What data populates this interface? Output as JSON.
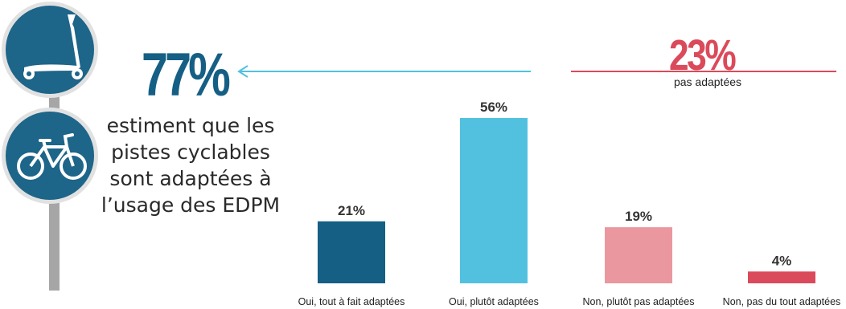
{
  "highlight_left": {
    "percent": "77%",
    "lines": [
      "estiment que les",
      "pistes cyclables",
      "sont adaptées à",
      "l’usage des EDPM"
    ]
  },
  "highlight_right": {
    "percent": "23%",
    "label": "pas adaptées"
  },
  "icons": [
    "kick-scooter-sign-icon",
    "bicycle-sign-icon",
    "left-arrow-icon"
  ],
  "colors": {
    "dark_blue": "#155f85",
    "light_blue": "#52c1df",
    "pink": "#ea979f",
    "red": "#db4a5a",
    "sign_blue": "#1d6589",
    "pole": "#a6a6a6"
  },
  "chart_data": {
    "type": "bar",
    "categories": [
      "Oui, tout à fait adaptées",
      "Oui, plutôt adaptées",
      "Non, plutôt pas adaptées",
      "Non, pas du tout adaptées"
    ],
    "values": [
      21,
      56,
      19,
      4
    ],
    "data_labels": [
      "21%",
      "56%",
      "19%",
      "4%"
    ],
    "bar_colors": [
      "#155f85",
      "#52c1df",
      "#ea979f",
      "#db4a5a"
    ],
    "ylim": [
      0,
      56
    ],
    "grid": false,
    "legend": "none"
  }
}
